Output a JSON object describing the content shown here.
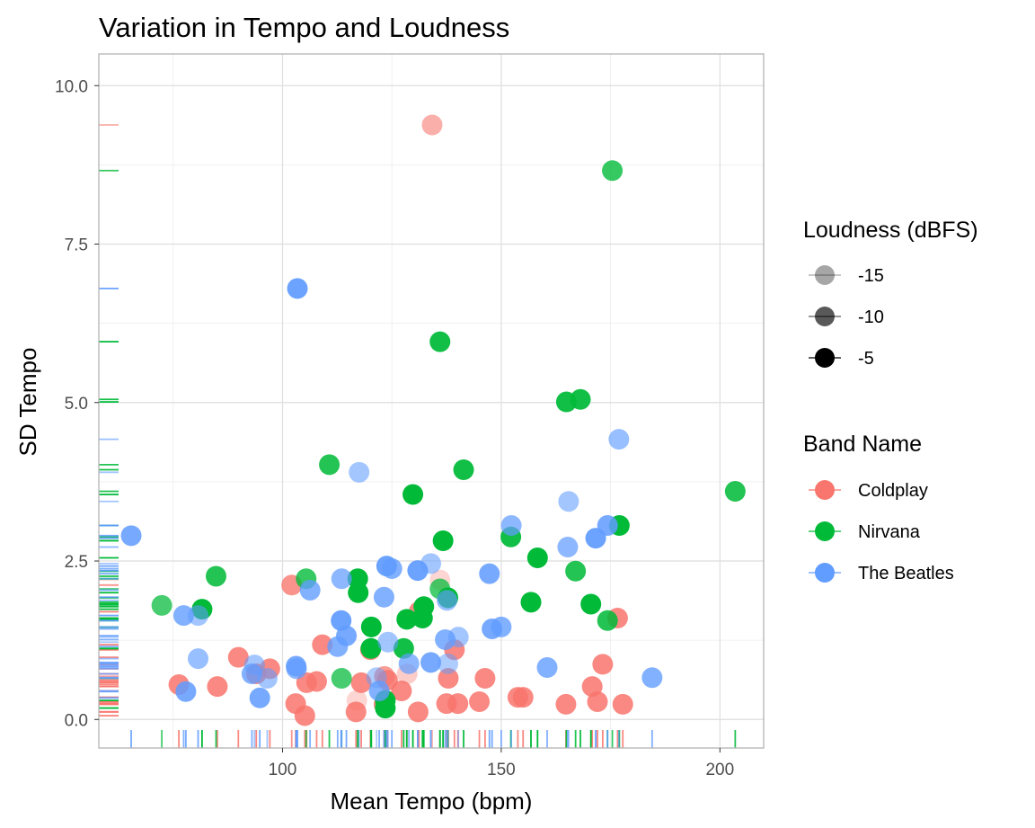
{
  "chart_data": {
    "type": "scatter",
    "title": "Variation in Tempo and Loudness",
    "xlabel": "Mean Tempo (bpm)",
    "ylabel": "SD Tempo",
    "xlim": [
      58,
      210
    ],
    "ylim": [
      -0.45,
      10.5
    ],
    "xticks": [
      100,
      150,
      200
    ],
    "xtick_labels": [
      "100",
      "150",
      "200"
    ],
    "yticks": [
      0,
      2.5,
      5,
      7.5,
      10
    ],
    "ytick_labels": [
      "0.0",
      "2.5",
      "5.0",
      "7.5",
      "10.0"
    ],
    "grid": true,
    "rug": true,
    "legend_position": "right",
    "legend_size": {
      "title": "Loudness (dBFS)",
      "entries": [
        {
          "label": "-15",
          "opacity": 0.35
        },
        {
          "label": "-10",
          "opacity": 0.65
        },
        {
          "label": "-5",
          "opacity": 1.0
        }
      ]
    },
    "legend_color": {
      "title": "Band Name",
      "entries": [
        {
          "label": "Coldplay",
          "color": "#F8766D"
        },
        {
          "label": "Nirvana",
          "color": "#00BA38"
        },
        {
          "label": "The Beatles",
          "color": "#619CFF"
        }
      ]
    },
    "series": [
      {
        "name": "Coldplay",
        "color": "#F8766D",
        "points": [
          [
            134.2,
            9.38,
            -12
          ],
          [
            102.1,
            2.12,
            -9
          ],
          [
            131.2,
            1.7,
            -8
          ],
          [
            109.1,
            1.18,
            -8
          ],
          [
            120.1,
            1.1,
            -8
          ],
          [
            89.9,
            0.98,
            -8
          ],
          [
            97.1,
            0.8,
            -8
          ],
          [
            94.0,
            0.72,
            -8
          ],
          [
            76.3,
            0.55,
            -8
          ],
          [
            85.1,
            0.52,
            -8
          ],
          [
            103.0,
            0.25,
            -8
          ],
          [
            105.5,
            0.58,
            -8
          ],
          [
            107.8,
            0.6,
            -8
          ],
          [
            105.1,
            0.06,
            -8
          ],
          [
            118.0,
            0.58,
            -8
          ],
          [
            116.8,
            0.12,
            -8
          ],
          [
            123.3,
            0.68,
            -10
          ],
          [
            124.0,
            0.62,
            -8
          ],
          [
            127.2,
            0.45,
            -8
          ],
          [
            123.2,
            0.24,
            -8
          ],
          [
            131.0,
            0.12,
            -8
          ],
          [
            137.5,
            0.25,
            -8
          ],
          [
            137.9,
            0.65,
            -8
          ],
          [
            140.1,
            0.25,
            -8
          ],
          [
            139.3,
            1.1,
            -8
          ],
          [
            145.0,
            0.28,
            -8
          ],
          [
            146.3,
            0.65,
            -8
          ],
          [
            153.8,
            0.35,
            -8
          ],
          [
            155.0,
            0.35,
            -8
          ],
          [
            164.8,
            0.24,
            -8
          ],
          [
            170.8,
            0.52,
            -8
          ],
          [
            172.0,
            0.28,
            -8
          ],
          [
            173.2,
            0.87,
            -8
          ],
          [
            176.6,
            1.6,
            -8
          ],
          [
            177.8,
            0.24,
            -8
          ],
          [
            128.5,
            0.72,
            -15
          ],
          [
            117.0,
            0.3,
            -16
          ],
          [
            136.0,
            2.2,
            -16
          ]
        ]
      },
      {
        "name": "Nirvana",
        "color": "#00BA38",
        "points": [
          [
            175.4,
            8.66,
            -9
          ],
          [
            136.0,
            5.96,
            -7
          ],
          [
            164.9,
            5.01,
            -7
          ],
          [
            168.1,
            5.05,
            -7
          ],
          [
            203.5,
            3.6,
            -8
          ],
          [
            110.7,
            4.02,
            -8
          ],
          [
            141.4,
            3.94,
            -7
          ],
          [
            129.8,
            3.55,
            -6
          ],
          [
            136.7,
            2.82,
            -6
          ],
          [
            152.2,
            2.88,
            -7
          ],
          [
            158.3,
            2.55,
            -6
          ],
          [
            167.0,
            2.34,
            -8
          ],
          [
            177.0,
            3.06,
            -6
          ],
          [
            84.8,
            2.26,
            -8
          ],
          [
            105.4,
            2.22,
            -9
          ],
          [
            117.2,
            2.22,
            -6
          ],
          [
            117.3,
            2.0,
            -6
          ],
          [
            137.8,
            1.92,
            -6
          ],
          [
            136.0,
            2.06,
            -10
          ],
          [
            72.4,
            1.8,
            -10
          ],
          [
            81.6,
            1.74,
            -6
          ],
          [
            120.3,
            1.46,
            -6
          ],
          [
            128.4,
            1.58,
            -6
          ],
          [
            132.3,
            1.78,
            -6
          ],
          [
            132.0,
            1.6,
            -6
          ],
          [
            156.8,
            1.85,
            -6
          ],
          [
            170.5,
            1.82,
            -6
          ],
          [
            174.3,
            1.56,
            -8
          ],
          [
            127.7,
            1.12,
            -7
          ],
          [
            120.2,
            1.12,
            -6
          ],
          [
            113.5,
            0.65,
            -10
          ],
          [
            123.5,
            0.18,
            -6
          ],
          [
            123.5,
            0.3,
            -6
          ]
        ]
      },
      {
        "name": "The Beatles",
        "color": "#619CFF",
        "points": [
          [
            103.4,
            6.8,
            -7
          ],
          [
            117.5,
            3.9,
            -12
          ],
          [
            176.9,
            4.42,
            -11
          ],
          [
            165.4,
            3.44,
            -12
          ],
          [
            152.3,
            3.06,
            -10
          ],
          [
            174.3,
            3.06,
            -8
          ],
          [
            171.6,
            2.86,
            -7
          ],
          [
            165.2,
            2.72,
            -10
          ],
          [
            65.4,
            2.9,
            -8
          ],
          [
            123.8,
            2.42,
            -7
          ],
          [
            125.0,
            2.38,
            -9
          ],
          [
            133.9,
            2.46,
            -12
          ],
          [
            130.9,
            2.35,
            -7
          ],
          [
            113.5,
            2.22,
            -10
          ],
          [
            106.3,
            2.04,
            -9
          ],
          [
            123.2,
            1.93,
            -9
          ],
          [
            147.3,
            2.3,
            -8
          ],
          [
            77.4,
            1.64,
            -9
          ],
          [
            80.7,
            1.64,
            -12
          ],
          [
            113.4,
            1.56,
            -7
          ],
          [
            114.6,
            1.32,
            -8
          ],
          [
            112.6,
            1.15,
            -9
          ],
          [
            124.1,
            1.22,
            -12
          ],
          [
            137.2,
            1.26,
            -9
          ],
          [
            140.2,
            1.3,
            -12
          ],
          [
            137.6,
            1.88,
            -11
          ],
          [
            147.9,
            1.43,
            -8
          ],
          [
            150.0,
            1.46,
            -9
          ],
          [
            80.7,
            0.96,
            -11
          ],
          [
            93.6,
            0.86,
            -12
          ],
          [
            93.0,
            0.72,
            -9
          ],
          [
            96.5,
            0.65,
            -12
          ],
          [
            103.1,
            0.84,
            -8
          ],
          [
            103.2,
            0.8,
            -10
          ],
          [
            128.9,
            0.88,
            -10
          ],
          [
            133.9,
            0.9,
            -8
          ],
          [
            137.8,
            0.88,
            -13
          ],
          [
            160.5,
            0.82,
            -9
          ],
          [
            77.9,
            0.44,
            -8
          ],
          [
            94.8,
            0.34,
            -8
          ],
          [
            122.1,
            0.45,
            -9
          ],
          [
            184.5,
            0.66,
            -9
          ],
          [
            121.5,
            0.66,
            -13
          ]
        ]
      }
    ]
  }
}
